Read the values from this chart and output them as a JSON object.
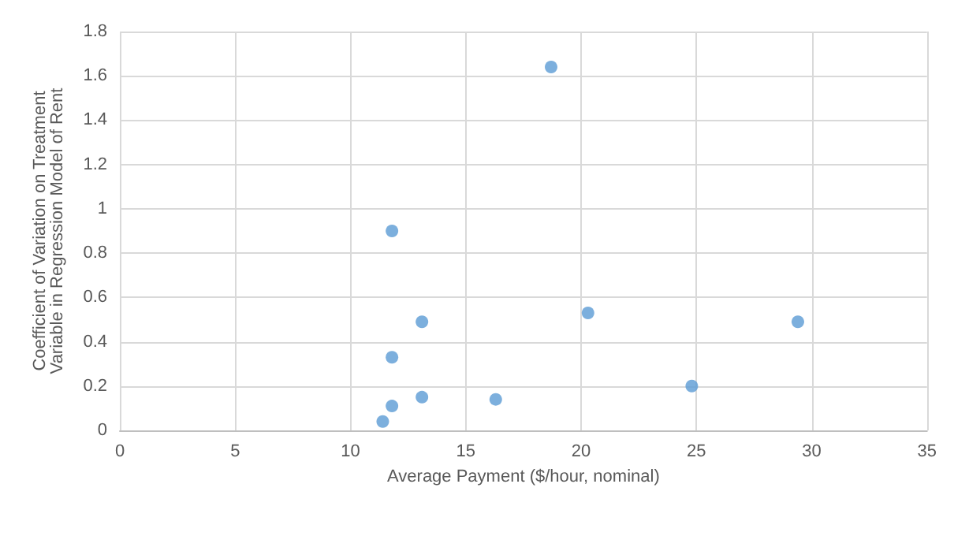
{
  "chart_data": {
    "type": "scatter",
    "xlabel": "Average Payment ($/hour, nominal)",
    "ylabel": "Coefficient of Variation on Treatment Variable in Regression Model of Rent",
    "x": [
      18.7,
      11.8,
      13.1,
      11.8,
      20.3,
      29.4,
      24.8,
      13.1,
      16.3,
      11.8,
      11.4
    ],
    "series": [
      {
        "color": "#5b9bd5",
        "values": [
          1.64,
          0.9,
          0.49,
          0.33,
          0.53,
          0.49,
          0.2,
          0.15,
          0.14,
          0.11,
          0.04
        ]
      }
    ],
    "xlim": [
      0,
      35
    ],
    "xticks": [
      0,
      5,
      10,
      15,
      20,
      25,
      30,
      35
    ],
    "ylim": [
      0,
      1.8
    ],
    "yticks": [
      0,
      0.2,
      0.4,
      0.6,
      0.8,
      1,
      1.2,
      1.4,
      1.6,
      1.8
    ],
    "grid": true,
    "marker": "circle"
  }
}
